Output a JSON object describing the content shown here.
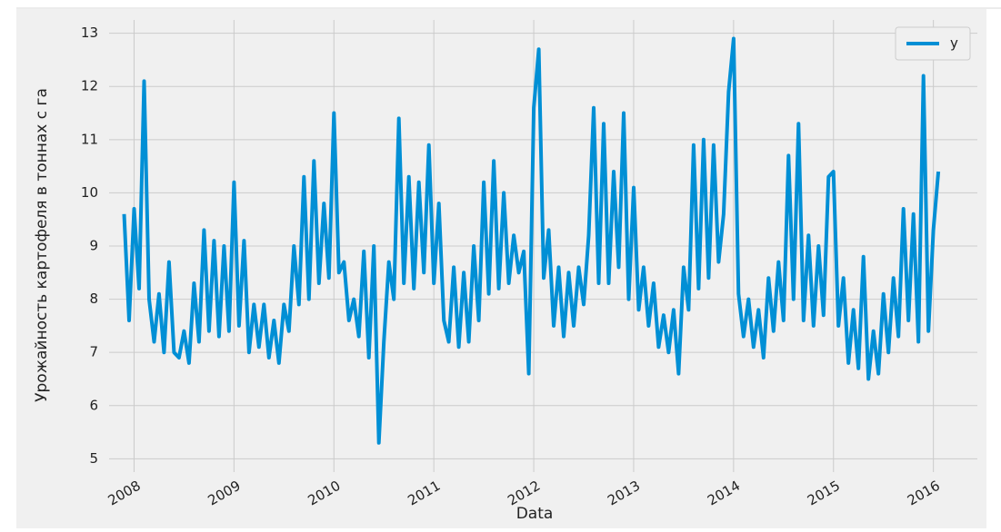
{
  "chart_data": {
    "type": "line",
    "x_label": "Data",
    "y_label": "Урожайность картофеля в тоннах  с га",
    "x": [
      2007.9,
      2007.95,
      2008,
      2008.05,
      2008.1,
      2008.15,
      2008.2,
      2008.25,
      2008.3,
      2008.35,
      2008.4,
      2008.45,
      2008.5,
      2008.55,
      2008.6,
      2008.65,
      2008.7,
      2008.75,
      2008.8,
      2008.85,
      2008.9,
      2008.95,
      2009,
      2009.05,
      2009.1,
      2009.15,
      2009.2,
      2009.25,
      2009.3,
      2009.35,
      2009.4,
      2009.45,
      2009.5,
      2009.55,
      2009.6,
      2009.65,
      2009.7,
      2009.75,
      2009.8,
      2009.85,
      2009.9,
      2009.95,
      2010,
      2010.05,
      2010.1,
      2010.15,
      2010.2,
      2010.25,
      2010.3,
      2010.35,
      2010.4,
      2010.45,
      2010.5,
      2010.55,
      2010.6,
      2010.65,
      2010.7,
      2010.75,
      2010.8,
      2010.85,
      2010.9,
      2010.95,
      2011,
      2011.05,
      2011.1,
      2011.15,
      2011.2,
      2011.25,
      2011.3,
      2011.35,
      2011.4,
      2011.45,
      2011.5,
      2011.55,
      2011.6,
      2011.65,
      2011.7,
      2011.75,
      2011.8,
      2011.85,
      2011.9,
      2011.95,
      2012,
      2012.05,
      2012.1,
      2012.15,
      2012.2,
      2012.25,
      2012.3,
      2012.35,
      2012.4,
      2012.45,
      2012.5,
      2012.55,
      2012.6,
      2012.65,
      2012.7,
      2012.75,
      2012.8,
      2012.85,
      2012.9,
      2012.95,
      2013,
      2013.05,
      2013.1,
      2013.15,
      2013.2,
      2013.25,
      2013.3,
      2013.35,
      2013.4,
      2013.45,
      2013.5,
      2013.55,
      2013.6,
      2013.65,
      2013.7,
      2013.75,
      2013.8,
      2013.85,
      2013.9,
      2013.95,
      2014,
      2014.05,
      2014.1,
      2014.15,
      2014.2,
      2014.25,
      2014.3,
      2014.35,
      2014.4,
      2014.45,
      2014.5,
      2014.55,
      2014.6,
      2014.65,
      2014.7,
      2014.75,
      2014.8,
      2014.85,
      2014.9,
      2014.95,
      2015,
      2015.05,
      2015.1,
      2015.15,
      2015.2,
      2015.25,
      2015.3,
      2015.35,
      2015.4,
      2015.45,
      2015.5,
      2015.55,
      2015.6,
      2015.65,
      2015.7,
      2015.75,
      2015.8,
      2015.85,
      2015.9,
      2015.95,
      2016,
      2016.05
    ],
    "series": [
      {
        "name": "y",
        "color": "#008fd5",
        "values": [
          9.6,
          7.6,
          9.7,
          8.2,
          12.1,
          8.0,
          7.2,
          8.1,
          7.0,
          8.7,
          7.0,
          6.9,
          7.4,
          6.8,
          8.3,
          7.2,
          9.3,
          7.4,
          9.1,
          7.3,
          9.0,
          7.4,
          10.2,
          7.5,
          9.1,
          7.0,
          7.9,
          7.1,
          7.9,
          6.9,
          7.6,
          6.8,
          7.9,
          7.4,
          9.0,
          7.9,
          10.3,
          8.0,
          10.6,
          8.3,
          9.8,
          8.4,
          11.5,
          8.5,
          8.7,
          7.6,
          8.0,
          7.3,
          8.9,
          6.9,
          9.0,
          5.3,
          7.2,
          8.7,
          8.0,
          11.4,
          8.3,
          10.3,
          8.2,
          10.2,
          8.5,
          10.9,
          8.3,
          9.8,
          7.6,
          7.2,
          8.6,
          7.1,
          8.5,
          7.2,
          9.0,
          7.6,
          10.2,
          8.1,
          10.6,
          8.2,
          10.0,
          8.3,
          9.2,
          8.5,
          8.9,
          6.6,
          11.6,
          12.7,
          8.4,
          9.3,
          7.5,
          8.6,
          7.3,
          8.5,
          7.5,
          8.6,
          7.9,
          9.2,
          11.6,
          8.3,
          11.3,
          8.3,
          10.4,
          8.6,
          11.5,
          8.0,
          10.1,
          7.8,
          8.6,
          7.5,
          8.3,
          7.1,
          7.7,
          7.0,
          7.8,
          6.6,
          8.6,
          7.8,
          10.9,
          8.2,
          11.0,
          8.4,
          10.9,
          8.7,
          9.6,
          11.9,
          12.9,
          8.1,
          7.3,
          8.0,
          7.1,
          7.8,
          6.9,
          8.4,
          7.4,
          8.7,
          7.6,
          10.7,
          8.0,
          11.3,
          7.6,
          9.2,
          7.5,
          9.0,
          7.7,
          10.3,
          10.4,
          7.5,
          8.4,
          6.8,
          7.8,
          6.7,
          8.8,
          6.5,
          7.4,
          6.6,
          8.1,
          7.0,
          8.4,
          7.3,
          9.7,
          7.6,
          9.6,
          7.2,
          12.2,
          7.4,
          9.3,
          10.4
        ]
      }
    ],
    "xlim": [
      2007.75,
      2016.44
    ],
    "xticks": [
      2008,
      2009,
      2010,
      2011,
      2012,
      2013,
      2014,
      2015,
      2016
    ],
    "ylim": [
      4.75,
      13.25
    ],
    "yticks": [
      5,
      6,
      7,
      8,
      9,
      10,
      11,
      12,
      13
    ],
    "grid": true,
    "legend": "upper right"
  }
}
